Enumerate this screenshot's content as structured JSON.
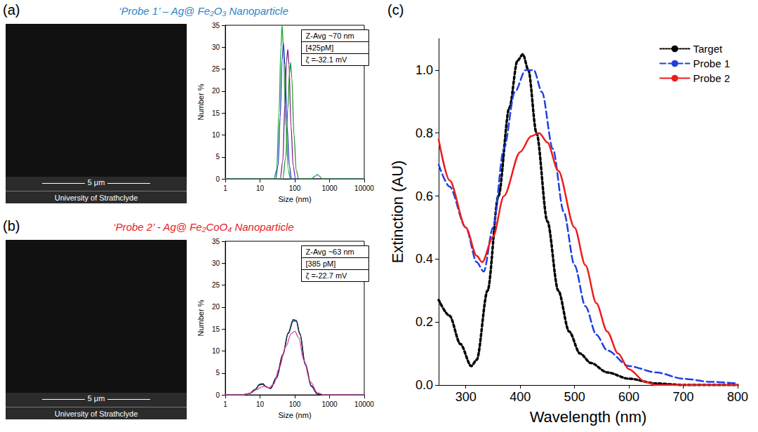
{
  "panels": [
    {
      "letter": "(a)",
      "title": "‘Probe 1’ – Ag@ Fe₂O₃ Nanoparticle",
      "color": "#2a86c8",
      "image": {
        "scale_bar": "5 μm",
        "caption": "University of Strathclyde"
      }
    },
    {
      "letter": "(b)",
      "title": "‘Probe 2’ - Ag@ Fe₂CoO₄ Nanoparticle",
      "color": "#e8202a",
      "image": {
        "scale_bar": "5 μm",
        "caption": "University of Strathclyde"
      }
    },
    {
      "letter": "(c)"
    }
  ],
  "chart_data": [
    {
      "type": "line",
      "x_label": "Size (nm)",
      "y_label": "Number %",
      "log": "x",
      "xlim": [
        1,
        10000
      ],
      "xticks": [
        1,
        10,
        100,
        1000,
        10000
      ],
      "ylim": [
        0,
        35
      ],
      "yticks": [
        0,
        5,
        10,
        15,
        20,
        25,
        30,
        35
      ],
      "grid": false,
      "annotations": [
        "Z-Avg ~70 nm",
        "[425pM]",
        "ζ =-32.1 mV"
      ],
      "series": [
        {
          "color": "#22a33a",
          "x": [
            1,
            25,
            30,
            35,
            40,
            43,
            47,
            55,
            65,
            75,
            10000
          ],
          "values": [
            0,
            0,
            2,
            15,
            30,
            35,
            30,
            12,
            2,
            0,
            0
          ]
        },
        {
          "color": "#2040c0",
          "x": [
            1,
            28,
            33,
            38,
            43,
            47,
            52,
            60,
            70,
            80,
            10000
          ],
          "values": [
            0,
            0,
            3,
            14,
            27,
            31,
            26,
            12,
            3,
            0,
            0
          ]
        },
        {
          "color": "#8a1a8a",
          "x": [
            1,
            38,
            45,
            52,
            58,
            63,
            68,
            78,
            90,
            105,
            10000
          ],
          "values": [
            0,
            0,
            4,
            17,
            27,
            29.5,
            26,
            12,
            3,
            0,
            0
          ]
        },
        {
          "color": "#1f9a2e",
          "x": [
            1,
            45,
            55,
            63,
            70,
            76,
            82,
            95,
            110,
            130,
            300,
            380,
            450,
            520,
            600,
            10000
          ],
          "values": [
            0,
            0,
            5,
            16,
            24,
            26.5,
            23,
            10,
            2,
            0,
            0,
            0.6,
            1,
            0.6,
            0,
            0
          ]
        }
      ]
    },
    {
      "type": "line",
      "x_label": "Size (nm)",
      "y_label": "Number %",
      "log": "x",
      "xlim": [
        1,
        10000
      ],
      "xticks": [
        1,
        10,
        100,
        1000,
        10000
      ],
      "ylim": [
        0,
        35
      ],
      "yticks": [
        0,
        5,
        10,
        15,
        20,
        25,
        30,
        35
      ],
      "grid": false,
      "annotations": [
        "Z-Avg ~63 nm",
        "[385 pM]",
        "ζ =-22.7 mV"
      ],
      "series": [
        {
          "color": "#22a33a",
          "x": [
            1,
            3,
            5,
            7,
            10,
            12,
            15,
            20,
            30,
            45,
            65,
            90,
            110,
            140,
            200,
            300,
            450,
            600,
            10000
          ],
          "values": [
            0,
            0,
            0.3,
            1.2,
            2.5,
            2.5,
            1.8,
            1.5,
            4,
            9,
            14,
            17,
            17,
            14,
            7,
            2,
            0.2,
            0,
            0
          ]
        },
        {
          "color": "#2040c0",
          "x": [
            1,
            3,
            5,
            7,
            10,
            12,
            15,
            20,
            30,
            45,
            65,
            90,
            110,
            140,
            200,
            300,
            450,
            600,
            10000
          ],
          "values": [
            0,
            0,
            0.3,
            1.1,
            2.4,
            2.6,
            1.9,
            1.4,
            3.8,
            9,
            14.2,
            17.2,
            17,
            13.8,
            6.8,
            1.9,
            0.2,
            0,
            0
          ]
        },
        {
          "color": "#222222",
          "x": [
            1,
            3,
            5,
            7,
            10,
            12,
            15,
            20,
            30,
            45,
            65,
            90,
            110,
            140,
            200,
            300,
            450,
            600,
            10000
          ],
          "values": [
            0,
            0,
            0.3,
            1.2,
            2.3,
            2.4,
            1.8,
            1.5,
            4.1,
            9.2,
            14,
            16.8,
            16.8,
            14,
            7.2,
            2.1,
            0.2,
            0,
            0
          ]
        },
        {
          "color": "#e040a0",
          "x": [
            1,
            3,
            5,
            8,
            11,
            14,
            18,
            25,
            35,
            55,
            80,
            100,
            130,
            180,
            280,
            450,
            700,
            10000
          ],
          "values": [
            0,
            0,
            0.3,
            1.2,
            1.8,
            2,
            1.6,
            2.5,
            6,
            11,
            14,
            14.5,
            13,
            8,
            3,
            0.5,
            0,
            0
          ]
        }
      ]
    },
    {
      "type": "line",
      "x_label": "Wavelength (nm)",
      "y_label": "Extinction (AU)",
      "xlim": [
        250,
        800
      ],
      "xticks": [
        300,
        400,
        500,
        600,
        700,
        800
      ],
      "ylim": [
        0,
        1.1
      ],
      "yticks": [
        {
          "value": 0,
          "label": "0.0"
        },
        {
          "value": 0.2,
          "label": "0.2"
        },
        {
          "value": 0.4,
          "label": "0.4"
        },
        {
          "value": 0.6,
          "label": "0.6"
        },
        {
          "value": 0.8,
          "label": "0.8"
        },
        {
          "value": 1.0,
          "label": "1.0"
        }
      ],
      "grid": false,
      "legend": "upper right",
      "series": [
        {
          "name": "Target",
          "color": "#000000",
          "line_style": "dotted",
          "x": [
            250,
            270,
            290,
            310,
            320,
            340,
            360,
            380,
            395,
            405,
            415,
            430,
            450,
            470,
            490,
            510,
            530,
            560,
            600,
            650,
            700,
            800
          ],
          "values": [
            0.27,
            0.22,
            0.13,
            0.06,
            0.08,
            0.3,
            0.6,
            0.88,
            1.03,
            1.05,
            1.0,
            0.8,
            0.52,
            0.3,
            0.17,
            0.1,
            0.07,
            0.04,
            0.02,
            0.005,
            0,
            0
          ]
        },
        {
          "name": "Probe 1",
          "color": "#1f3fe0",
          "line_style": "dashed",
          "x": [
            250,
            270,
            300,
            320,
            333,
            350,
            370,
            390,
            410,
            425,
            440,
            460,
            480,
            500,
            520,
            540,
            560,
            600,
            650,
            700,
            750,
            800
          ],
          "values": [
            0.7,
            0.63,
            0.5,
            0.39,
            0.36,
            0.5,
            0.75,
            0.93,
            1.0,
            1.0,
            0.93,
            0.75,
            0.55,
            0.38,
            0.25,
            0.16,
            0.11,
            0.06,
            0.04,
            0.02,
            0.01,
            0.005
          ]
        },
        {
          "name": "Probe 2",
          "color": "#ee1c1c",
          "line_style": "solid",
          "x": [
            250,
            270,
            300,
            320,
            330,
            350,
            370,
            400,
            420,
            435,
            450,
            470,
            500,
            520,
            540,
            560,
            580,
            600,
            630,
            650,
            800
          ],
          "values": [
            0.78,
            0.65,
            0.5,
            0.41,
            0.39,
            0.47,
            0.6,
            0.74,
            0.79,
            0.8,
            0.77,
            0.68,
            0.5,
            0.38,
            0.26,
            0.17,
            0.1,
            0.05,
            0.01,
            0,
            0
          ]
        }
      ]
    }
  ]
}
